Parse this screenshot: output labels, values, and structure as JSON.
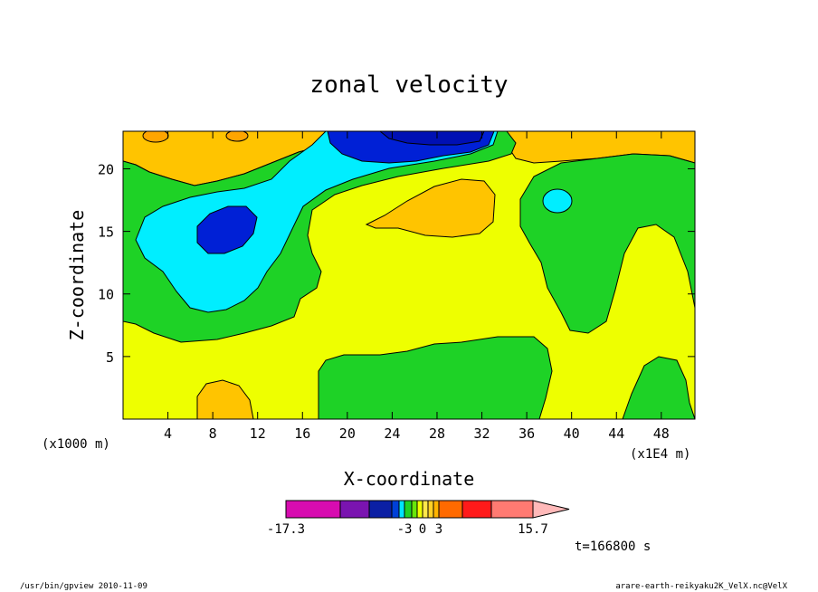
{
  "chart_data": {
    "type": "heatmap",
    "title": "zonal velocity",
    "xlabel": "X-coordinate",
    "ylabel": "Z-coordinate",
    "x_unit_label": "(x1E4 m)",
    "y_unit_label": "(x1000 m)",
    "xlim": [
      0,
      51
    ],
    "ylim": [
      0,
      23
    ],
    "x_ticks": [
      4,
      8,
      12,
      16,
      20,
      24,
      28,
      32,
      36,
      40,
      44,
      48
    ],
    "y_ticks": [
      5,
      10,
      15,
      20
    ],
    "time_label": "t=166800 s",
    "colorbar": {
      "levels": [
        -17.3,
        -12.0,
        -9.5,
        -7.0,
        -5.0,
        -3.0,
        -2.0,
        -1.0,
        0,
        1,
        2,
        3,
        5.5,
        8.5,
        11.5,
        15.7
      ],
      "labels": [
        "-17.3",
        "-3",
        "0",
        "3",
        "15.7"
      ],
      "colors": [
        "#d70cb0",
        "#7a14b0",
        "#0b1fa4",
        "#0040d8",
        "#00e4ff",
        "#1ed226",
        "#68e60a",
        "#eeff00",
        "#ffe84a",
        "#ffd126",
        "#ffb400",
        "#ff6a00",
        "#ff1a1a",
        "#ff7a72",
        "#ffb9b9"
      ]
    },
    "regions": [
      {
        "name": "green upper band",
        "value": -1.5
      },
      {
        "name": "cyan band",
        "value": -2.5
      },
      {
        "name": "blue core top",
        "value": -6.0
      },
      {
        "name": "dark blue core top",
        "value": -11.0
      },
      {
        "name": "blue core left",
        "value": -6.0
      },
      {
        "name": "orange upper left",
        "value": 1.5
      },
      {
        "name": "orange mid",
        "value": 1.5
      },
      {
        "name": "orange bottom",
        "value": 1.5
      },
      {
        "name": "green right",
        "value": -1.5
      },
      {
        "name": "green bottom",
        "value": -1.5
      },
      {
        "name": "green bottom right",
        "value": -1.5
      },
      {
        "name": "cyan small right",
        "value": -2.5
      },
      {
        "name": "yellow background",
        "value": 0.5
      }
    ]
  },
  "footer": {
    "left": "/usr/bin/gpview  2010-11-09",
    "right": "arare-earth-reikyaku2K_VelX.nc@VelX"
  },
  "colors": {
    "yellow": "#eeff00",
    "orange": "#ffc400",
    "green": "#1ed226",
    "cyan": "#00eeff",
    "blue": "#0020d6",
    "dark_blue": "#0010b4"
  }
}
